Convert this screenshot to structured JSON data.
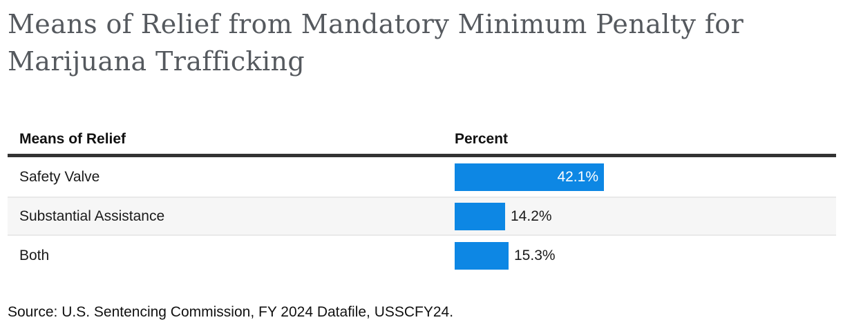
{
  "page": {
    "title": "Means of Relief from Mandatory Minimum Penalty for Marijuana Trafficking",
    "source": "Source: U.S. Sentencing Commission, FY 2024 Datafile, USSCFY24."
  },
  "table": {
    "headers": [
      "Means of Relief",
      "Percent"
    ]
  },
  "chart_data": {
    "type": "bar",
    "orientation": "horizontal",
    "title": "Means of Relief from Mandatory Minimum Penalty for Marijuana Trafficking",
    "categories": [
      "Safety Valve",
      "Substantial Assistance",
      "Both"
    ],
    "values": [
      42.1,
      14.2,
      15.3
    ],
    "value_labels": [
      "42.1%",
      "14.2%",
      "15.3%"
    ],
    "xlabel": "Percent",
    "ylabel": "Means of Relief",
    "legend": false,
    "grid": false,
    "striped_rows": true,
    "source": "Source: U.S. Sentencing Commission, FY 2024 Datafile, USSCFY24."
  },
  "colors": {
    "bar": "#0d87e4",
    "bar_value_inside": "#ffffff",
    "text": "#1a1a1a",
    "title": "#55595e",
    "header_rule": "#333333",
    "row_stripe": "#f6f6f6",
    "row_separator": "#e9e9e9"
  }
}
